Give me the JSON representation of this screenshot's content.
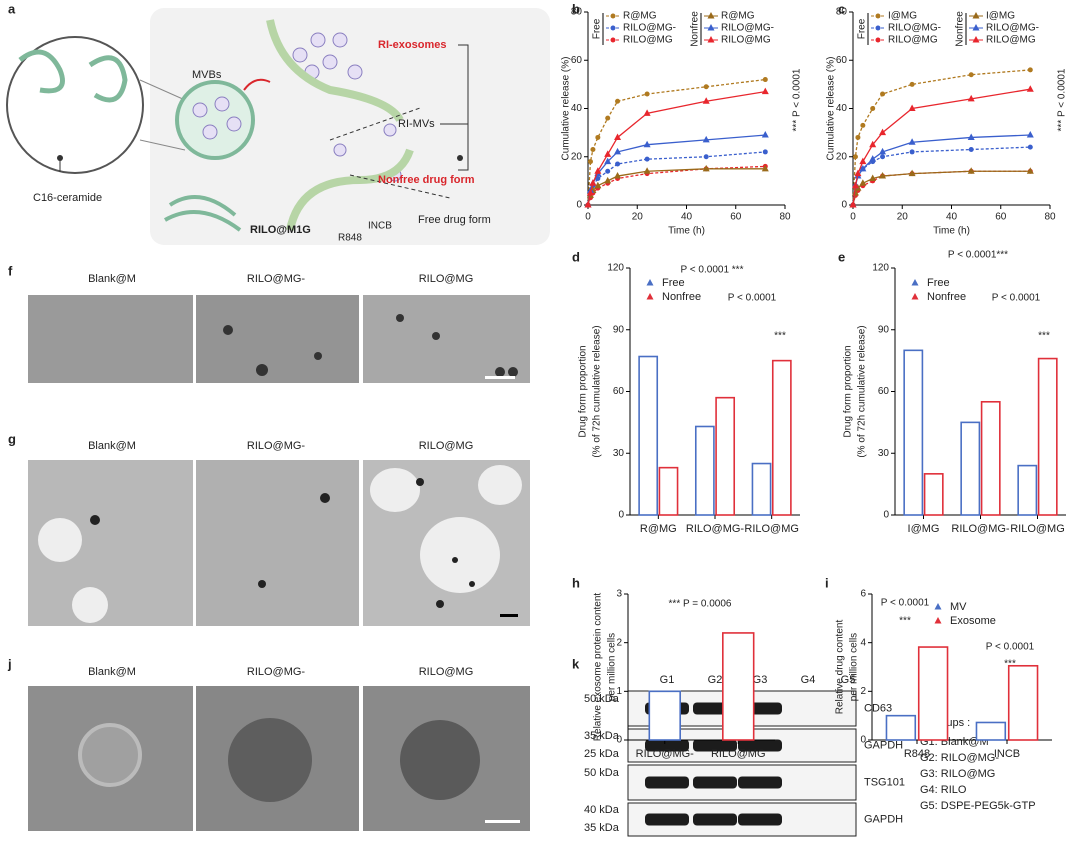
{
  "schematic": {
    "letter": "a",
    "labels": {
      "mvbs": "MVBs",
      "ri_exosomes": "RI-exosomes",
      "ri_mvs": "RI-MVs",
      "nonfree": "Nonfree drug form",
      "free": "Free drug form",
      "ceramide": "C16-ceramide",
      "formulation": "RILO@M1G",
      "incb": "INCB",
      "r848": "R848"
    }
  },
  "chart_data": [
    {
      "type": "line",
      "letter": "b",
      "xlabel": "Time (h)",
      "ylabel": "Cumulative release (%)",
      "x": [
        0,
        1,
        2,
        4,
        8,
        12,
        24,
        48,
        72
      ],
      "xlim": [
        0,
        80
      ],
      "xticks": [
        0,
        20,
        40,
        60,
        80
      ],
      "ylim": [
        0,
        80
      ],
      "yticks": [
        0,
        20,
        40,
        60,
        80
      ],
      "groups": [
        {
          "name": "Free",
          "series": [
            {
              "name": "R@MG",
              "color": "#b07a20",
              "dashed": true,
              "marker": "circle",
              "values": [
                0,
                18,
                23,
                28,
                36,
                43,
                46,
                49,
                52
              ]
            },
            {
              "name": "RILO@MG-",
              "color": "#3a5fcd",
              "dashed": true,
              "marker": "circle",
              "values": [
                0,
                5,
                8,
                11,
                14,
                17,
                19,
                20,
                22
              ]
            },
            {
              "name": "RILO@MG",
              "color": "#e8262d",
              "dashed": true,
              "marker": "circle",
              "values": [
                0,
                3,
                5,
                7,
                9,
                11,
                13,
                15,
                16
              ]
            }
          ]
        },
        {
          "name": "Nonfree",
          "series": [
            {
              "name": "R@MG",
              "color": "#9a6a1a",
              "dashed": false,
              "marker": "triangle",
              "values": [
                0,
                4,
                6,
                8,
                10,
                12,
                14,
                15,
                15
              ]
            },
            {
              "name": "RILO@MG-",
              "color": "#3a5fcd",
              "dashed": false,
              "marker": "triangle",
              "values": [
                0,
                6,
                9,
                13,
                18,
                22,
                25,
                27,
                29
              ]
            },
            {
              "name": "RILO@MG",
              "color": "#e8262d",
              "dashed": false,
              "marker": "triangle",
              "values": [
                0,
                5,
                9,
                14,
                21,
                28,
                38,
                43,
                47
              ]
            }
          ]
        }
      ],
      "annotations": [
        "*** P < 0.0001"
      ]
    },
    {
      "type": "line",
      "letter": "c",
      "xlabel": "Time (h)",
      "ylabel": "Cumulative release (%)",
      "x": [
        0,
        1,
        2,
        4,
        8,
        12,
        24,
        48,
        72
      ],
      "xlim": [
        0,
        80
      ],
      "xticks": [
        0,
        20,
        40,
        60,
        80
      ],
      "ylim": [
        0,
        80
      ],
      "yticks": [
        0,
        20,
        40,
        60,
        80
      ],
      "groups": [
        {
          "name": "Free",
          "series": [
            {
              "name": "I@MG",
              "color": "#b07a20",
              "dashed": true,
              "marker": "circle",
              "values": [
                0,
                20,
                28,
                33,
                40,
                46,
                50,
                54,
                56
              ]
            },
            {
              "name": "RILO@MG-",
              "color": "#3a5fcd",
              "dashed": true,
              "marker": "circle",
              "values": [
                0,
                8,
                12,
                15,
                18,
                20,
                22,
                23,
                24
              ]
            },
            {
              "name": "RILO@MG",
              "color": "#e8262d",
              "dashed": true,
              "marker": "circle",
              "values": [
                0,
                4,
                6,
                8,
                10,
                12,
                13,
                14,
                14
              ]
            }
          ]
        },
        {
          "name": "Nonfree",
          "series": [
            {
              "name": "I@MG",
              "color": "#9a6a1a",
              "dashed": false,
              "marker": "triangle",
              "values": [
                0,
                5,
                7,
                9,
                11,
                12,
                13,
                14,
                14
              ]
            },
            {
              "name": "RILO@MG-",
              "color": "#3a5fcd",
              "dashed": false,
              "marker": "triangle",
              "values": [
                0,
                8,
                12,
                15,
                19,
                22,
                26,
                28,
                29
              ]
            },
            {
              "name": "RILO@MG",
              "color": "#e8262d",
              "dashed": false,
              "marker": "triangle",
              "values": [
                0,
                8,
                13,
                18,
                25,
                30,
                40,
                44,
                48
              ]
            }
          ]
        }
      ],
      "annotations": [
        "*** P < 0.0001"
      ]
    },
    {
      "type": "bar",
      "letter": "d",
      "ylabel": [
        "Drug form proportion",
        "(% of 72h cumulative release)"
      ],
      "categories": [
        "R@MG",
        "RILO@MG-",
        "RILO@MG"
      ],
      "ylim": [
        0,
        120
      ],
      "yticks": [
        0,
        30,
        60,
        90,
        120
      ],
      "series": [
        {
          "name": "Free",
          "color": "#4a6fc4",
          "values": [
            77,
            43,
            25
          ]
        },
        {
          "name": "Nonfree",
          "color": "#e0303a",
          "values": [
            23,
            57,
            75
          ]
        }
      ],
      "annotations": [
        "P < 0.0001 ***",
        "P < 0.0001",
        "***"
      ]
    },
    {
      "type": "bar",
      "letter": "e",
      "ylabel": [
        "Drug form proportion",
        "(% of 72h cumulative release)"
      ],
      "categories": [
        "I@MG",
        "RILO@MG-",
        "RILO@MG"
      ],
      "ylim": [
        0,
        120
      ],
      "yticks": [
        0,
        30,
        60,
        90,
        120
      ],
      "series": [
        {
          "name": "Free",
          "color": "#4a6fc4",
          "values": [
            80,
            45,
            24
          ]
        },
        {
          "name": "Nonfree",
          "color": "#e0303a",
          "values": [
            20,
            55,
            76
          ]
        }
      ],
      "annotations": [
        "P < 0.0001***",
        "P < 0.0001",
        "***"
      ]
    },
    {
      "type": "bar",
      "letter": "h",
      "ylabel": [
        "Relative exosome protein content",
        "per million cells"
      ],
      "categories": [
        "RILO@MG-",
        "RILO@MG"
      ],
      "ylim": [
        0,
        3
      ],
      "yticks": [
        0,
        1,
        2,
        3
      ],
      "colors": [
        "#4a6fc4",
        "#e0303a"
      ],
      "values": [
        1.0,
        2.2
      ],
      "annotations": [
        "*** P = 0.0006"
      ]
    },
    {
      "type": "bar",
      "letter": "i",
      "ylabel": [
        "Relative drug content",
        "per million cells"
      ],
      "categories": [
        "R848",
        "INCB"
      ],
      "ylim": [
        0,
        6
      ],
      "yticks": [
        0,
        2,
        4,
        6
      ],
      "series": [
        {
          "name": "MV",
          "color": "#4a6fc4",
          "values": [
            1.0,
            0.72
          ]
        },
        {
          "name": "Exosome",
          "color": "#e0303a",
          "values": [
            3.82,
            3.05
          ]
        }
      ],
      "annotations": [
        "P < 0.0001",
        "***",
        "P < 0.0001",
        "***"
      ]
    }
  ],
  "images": [
    {
      "letter": "f",
      "labels": [
        "Blank@M",
        "RILO@MG-",
        "RILO@MG"
      ]
    },
    {
      "letter": "g",
      "labels": [
        "Blank@M",
        "RILO@MG-",
        "RILO@MG"
      ]
    },
    {
      "letter": "j",
      "labels": [
        "Blank@M",
        "RILO@MG-",
        "RILO@MG"
      ]
    }
  ],
  "blot": {
    "letter": "k",
    "lanes": [
      "G1",
      "G2",
      "G3",
      "G4",
      "G5"
    ],
    "rows": [
      {
        "markers": [
          "50 kDa"
        ],
        "band": "CD63"
      },
      {
        "markers": [
          "35 kDa",
          "25 kDa"
        ],
        "band": "GAPDH"
      },
      {
        "markers": [
          "50 kDa"
        ],
        "band": "TSG101"
      },
      {
        "markers": [
          "40 kDa",
          "35 kDa"
        ],
        "band": "GAPDH"
      }
    ],
    "legend_title": "Groups :",
    "legend": [
      "G1: Blank@M",
      "G2: RILO@MG-",
      "G3: RILO@MG",
      "G4: RILO",
      "G5: DSPE-PEG5k-GTP"
    ]
  }
}
